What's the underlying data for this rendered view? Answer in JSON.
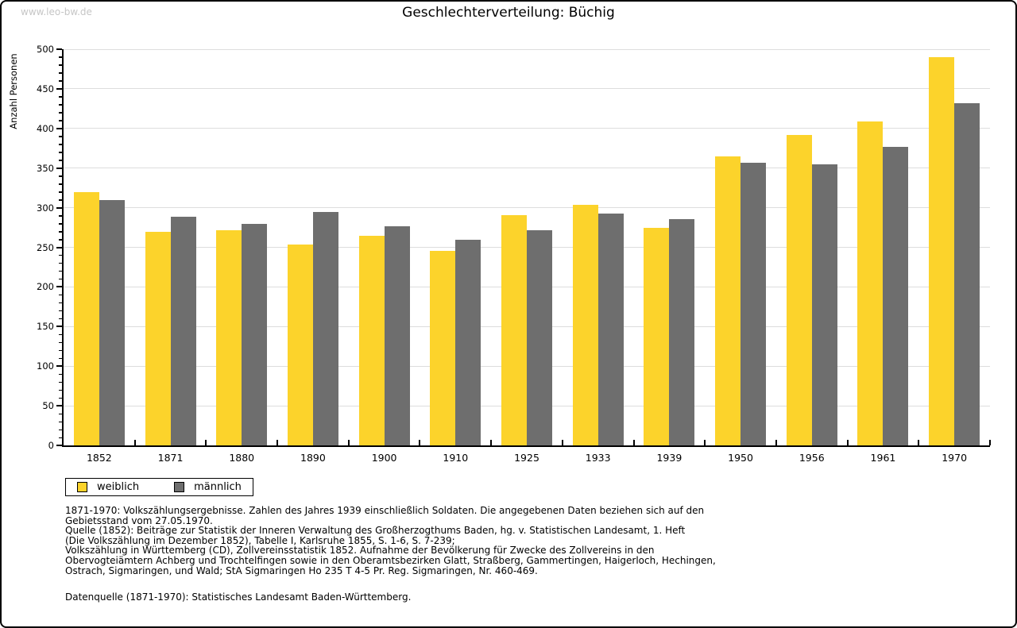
{
  "site": {
    "watermark": "www.leo-bw.de"
  },
  "chart_data": {
    "type": "bar",
    "title": "Geschlechterverteilung: Büchig",
    "ylabel": "Anzahl Personen",
    "xlabel": "",
    "ylim": [
      0,
      500
    ],
    "ytick_step": 50,
    "minor_tick_step": 10,
    "grid": "horizontal",
    "legend_position": "bottom-left",
    "categories": [
      "1852",
      "1871",
      "1880",
      "1890",
      "1900",
      "1910",
      "1925",
      "1933",
      "1939",
      "1950",
      "1956",
      "1961",
      "1970"
    ],
    "series": [
      {
        "name": "weiblich",
        "color": "#FCD32B",
        "values": [
          320,
          270,
          272,
          254,
          265,
          246,
          291,
          304,
          275,
          365,
          392,
          409,
          490
        ]
      },
      {
        "name": "männlich",
        "color": "#6E6E6E",
        "values": [
          310,
          289,
          280,
          295,
          277,
          260,
          272,
          293,
          286,
          357,
          355,
          377,
          432
        ]
      }
    ]
  },
  "colors": {
    "weiblich": "#FCD32B",
    "männlich": "#6E6E6E",
    "gridline": "#DDDDDD",
    "axis": "#000000",
    "watermark": "#C6C6C6"
  },
  "notes": {
    "text": "1871-1970: Volkszählungsergebnisse. Zahlen des Jahres 1939 einschließlich Soldaten. Die angegebenen Daten beziehen sich auf den\nGebietsstand vom 27.05.1970.\nQuelle (1852): Beiträge zur Statistik der Inneren Verwaltung des Großherzogthums Baden, hg. v. Statistischen Landesamt, 1. Heft\n(Die Volkszählung im Dezember 1852), Tabelle I, Karlsruhe 1855, S. 1-6, S. 7-239;\nVolkszählung in Württemberg (CD), Zollvereinsstatistik 1852. Aufnahme der Bevölkerung für Zwecke des Zollvereins in den\nObervogteiämtern Achberg und Trochtelfingen sowie in den Oberamtsbezirken Glatt, Straßberg, Gammertingen, Haigerloch, Hechingen,\nOstrach, Sigmaringen, und Wald; StA Sigmaringen Ho 235 T 4-5 Pr. Reg. Sigmaringen, Nr. 460-469.",
    "datasource": "Datenquelle (1871-1970): Statistisches Landesamt Baden-Württemberg."
  }
}
